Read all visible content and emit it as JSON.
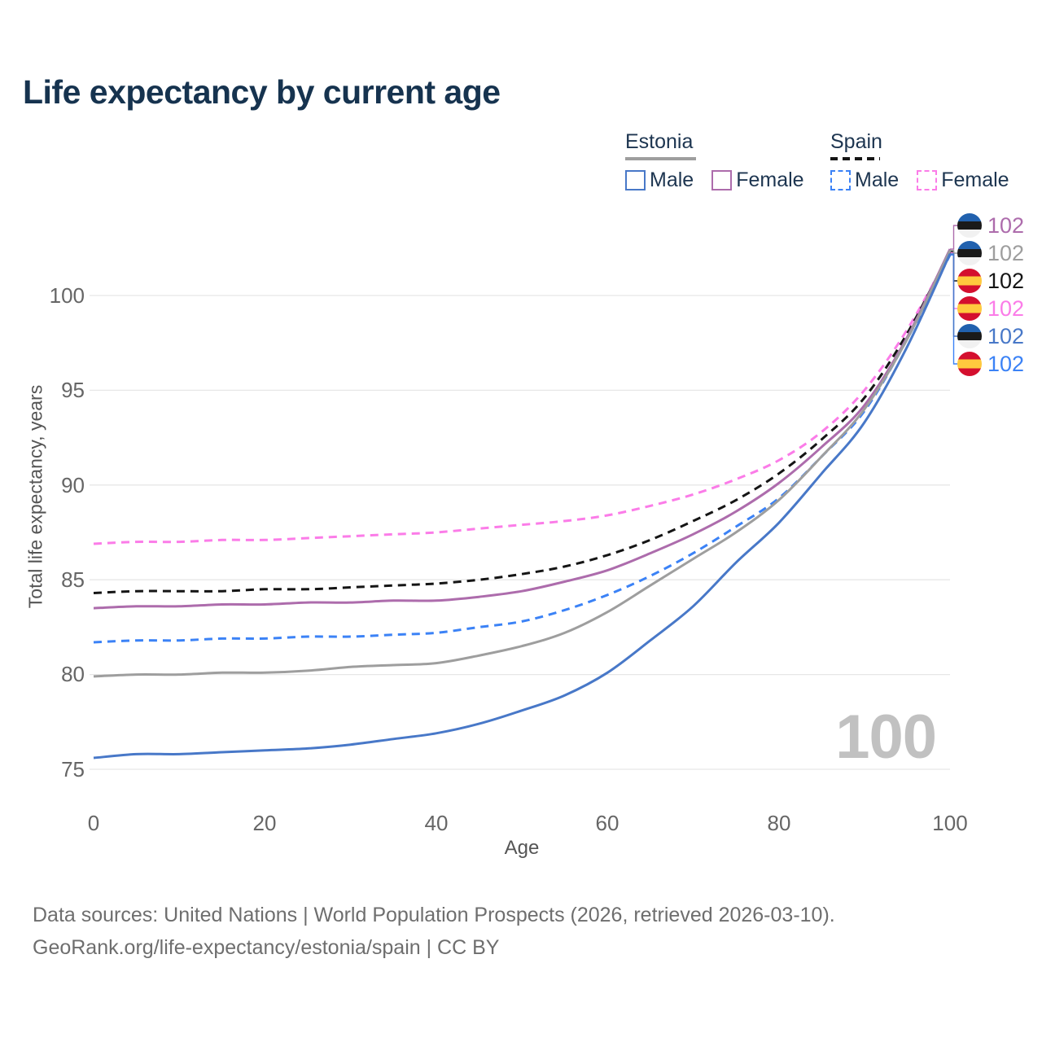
{
  "title": "Life expectancy by current age",
  "legend": {
    "estonia": {
      "name": "Estonia",
      "male": "Male",
      "female": "Female"
    },
    "spain": {
      "name": "Spain",
      "male": "Male",
      "female": "Female"
    }
  },
  "colors": {
    "estonia_male": "#4878c8",
    "estonia_female": "#ad6cac",
    "estonia_all": "#9e9e9e",
    "spain_male": "#3b82f6",
    "spain_female": "#fb7ce8",
    "spain_all": "#151515",
    "estonia_underline": "#9e9e9e",
    "spain_underline": "#151515",
    "grid": "#e7e7e7",
    "watermark_color": "#c1c1c1",
    "title_color": "#16334f"
  },
  "chart_data": {
    "type": "line",
    "title": "Life expectancy by current age",
    "xlabel": "Age",
    "ylabel": "Total life expectancy, years",
    "xlim": [
      0,
      100
    ],
    "ylim": [
      75,
      102.5
    ],
    "x_ticks": [
      0,
      20,
      40,
      60,
      80,
      100
    ],
    "y_ticks": [
      75,
      80,
      85,
      90,
      95,
      100
    ],
    "grid": true,
    "legend_position": "top-right",
    "x": [
      0,
      5,
      10,
      15,
      20,
      25,
      30,
      35,
      40,
      45,
      50,
      55,
      60,
      65,
      70,
      75,
      80,
      85,
      90,
      95,
      100
    ],
    "series": [
      {
        "id": "spain-female",
        "name": "Spain Female",
        "color": "#fb7ce8",
        "dashed": true,
        "label_row": 3,
        "values": [
          86.9,
          87.0,
          87.0,
          87.1,
          87.1,
          87.2,
          87.3,
          87.4,
          87.5,
          87.7,
          87.9,
          88.1,
          88.4,
          88.9,
          89.5,
          90.3,
          91.3,
          92.8,
          95.0,
          98.2,
          102.26
        ]
      },
      {
        "id": "spain-total",
        "name": "Spain",
        "color": "#151515",
        "dashed": true,
        "label_row": 2,
        "values": [
          84.3,
          84.4,
          84.4,
          84.4,
          84.5,
          84.5,
          84.6,
          84.7,
          84.8,
          85.0,
          85.3,
          85.7,
          86.3,
          87.1,
          88.1,
          89.2,
          90.6,
          92.4,
          94.6,
          98.0,
          102.32
        ]
      },
      {
        "id": "estonia-female",
        "name": "Estonia Female",
        "color": "#ad6cac",
        "dashed": false,
        "label_row": 0,
        "values": [
          83.5,
          83.6,
          83.6,
          83.7,
          83.7,
          83.8,
          83.8,
          83.9,
          83.9,
          84.1,
          84.4,
          84.9,
          85.5,
          86.4,
          87.4,
          88.6,
          90.1,
          92.0,
          94.2,
          97.8,
          102.45
        ]
      },
      {
        "id": "spain-male",
        "name": "Spain Male",
        "color": "#3b82f6",
        "dashed": true,
        "label_row": 5,
        "values": [
          81.7,
          81.8,
          81.8,
          81.9,
          81.9,
          82.0,
          82.0,
          82.1,
          82.2,
          82.5,
          82.8,
          83.4,
          84.2,
          85.2,
          86.4,
          87.8,
          89.3,
          91.5,
          93.9,
          97.7,
          102.14
        ]
      },
      {
        "id": "estonia-total",
        "name": "Estonia",
        "color": "#9e9e9e",
        "dashed": false,
        "label_row": 1,
        "values": [
          79.9,
          80.0,
          80.0,
          80.1,
          80.1,
          80.2,
          80.4,
          80.5,
          80.6,
          81.0,
          81.5,
          82.2,
          83.3,
          84.7,
          86.1,
          87.5,
          89.2,
          91.5,
          94.0,
          97.7,
          102.38
        ]
      },
      {
        "id": "estonia-male",
        "name": "Estonia Male",
        "color": "#4878c8",
        "dashed": false,
        "label_row": 4,
        "values": [
          75.6,
          75.8,
          75.8,
          75.9,
          76.0,
          76.1,
          76.3,
          76.6,
          76.9,
          77.4,
          78.1,
          78.9,
          80.1,
          81.8,
          83.6,
          85.9,
          88.0,
          90.6,
          93.3,
          97.3,
          102.2
        ]
      }
    ]
  },
  "right_labels": [
    {
      "flag": "estonia",
      "text": "102",
      "color": "#ad6cac"
    },
    {
      "flag": "estonia",
      "text": "102",
      "color": "#9e9e9e"
    },
    {
      "flag": "spain",
      "text": "102",
      "color": "#151515"
    },
    {
      "flag": "spain",
      "text": "102",
      "color": "#fb7ce8"
    },
    {
      "flag": "estonia",
      "text": "102",
      "color": "#4878c8"
    },
    {
      "flag": "spain",
      "text": "102",
      "color": "#3b82f6"
    }
  ],
  "watermark": "100",
  "footer": {
    "line1": "Data sources: United Nations | World Population Prospects (2026, retrieved 2026-03-10).",
    "line2": "GeoRank.org/life-expectancy/estonia/spain | CC BY"
  }
}
